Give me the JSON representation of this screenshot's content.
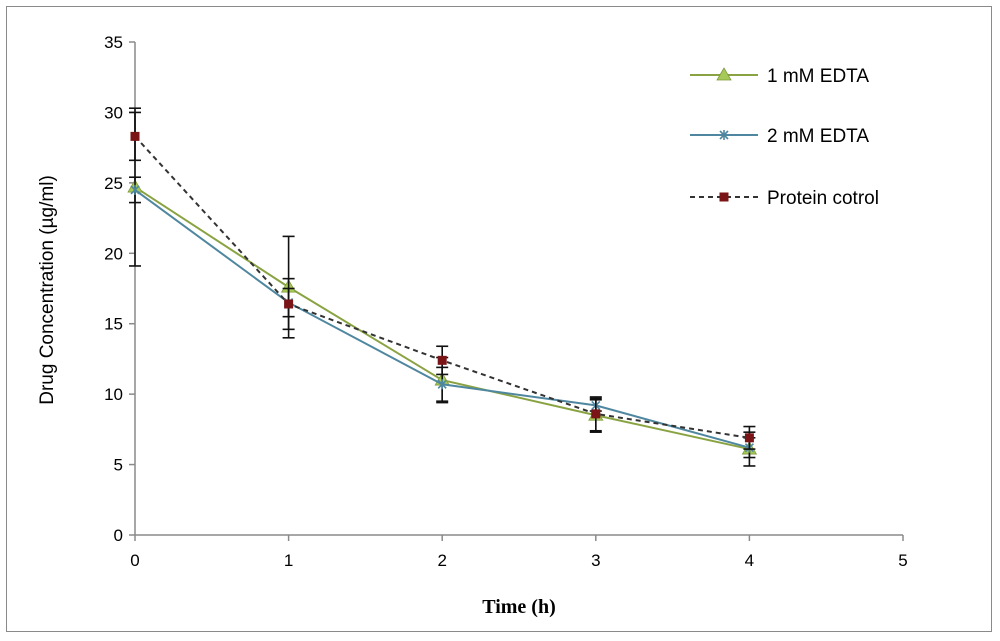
{
  "chart_data": {
    "type": "line",
    "title": "",
    "xlabel": "Time (h)",
    "ylabel": "Drug Concentration (µg/ml)",
    "xlim": [
      0,
      5
    ],
    "ylim": [
      0,
      35
    ],
    "xticks": [
      "0",
      "1",
      "2",
      "3",
      "4",
      "5"
    ],
    "yticks": [
      "0",
      "5",
      "10",
      "15",
      "20",
      "25",
      "30",
      "35"
    ],
    "grid": false,
    "legend_position": "top-right",
    "x": [
      0,
      1,
      2,
      3,
      4
    ],
    "series": [
      {
        "name": "1 mM EDTA",
        "values": [
          24.7,
          17.6,
          11.0,
          8.5,
          6.1
        ],
        "error": [
          5.6,
          3.6,
          1.6,
          1.2,
          1.2
        ],
        "color": "#8aa342",
        "marker_color": "#a7c957",
        "marker": "triangle",
        "dash": "solid"
      },
      {
        "name": "2 mM EDTA",
        "values": [
          24.5,
          16.5,
          10.7,
          9.2,
          6.2
        ],
        "error": [
          0.9,
          1.0,
          1.2,
          0.4,
          0.7
        ],
        "color": "#4f87a0",
        "marker_color": "#4f87a0",
        "marker": "star",
        "dash": "solid"
      },
      {
        "name": "Protein cotrol",
        "values": [
          28.3,
          16.4,
          12.4,
          8.6,
          6.9
        ],
        "error": [
          1.7,
          1.8,
          1.0,
          1.2,
          0.8
        ],
        "color": "#333333",
        "marker_color": "#7b1416",
        "marker": "square",
        "dash": "dashed"
      }
    ]
  }
}
